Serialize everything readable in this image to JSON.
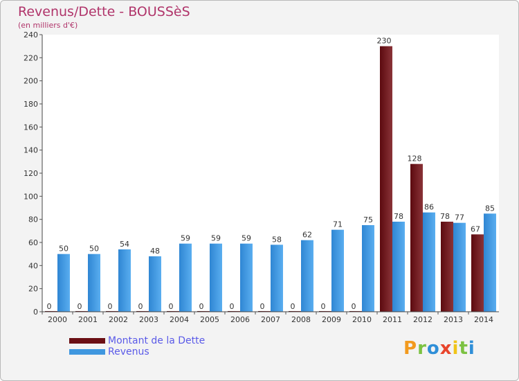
{
  "chart_data": {
    "type": "bar",
    "title": "Revenus/Dette - BOUSSèS",
    "subtitle": "(en milliers d'€)",
    "categories": [
      "2000",
      "2001",
      "2002",
      "2003",
      "2004",
      "2005",
      "2006",
      "2007",
      "2008",
      "2009",
      "2010",
      "2011",
      "2012",
      "2013",
      "2014"
    ],
    "series": [
      {
        "name": "Montant de la Dette",
        "color": "#6b0f14",
        "values": [
          0,
          0,
          0,
          0,
          0,
          0,
          0,
          0,
          0,
          0,
          0,
          230,
          128,
          78,
          67
        ]
      },
      {
        "name": "Revenus",
        "color": "#3f97df",
        "values": [
          50,
          50,
          54,
          48,
          59,
          59,
          59,
          58,
          62,
          71,
          75,
          78,
          86,
          77,
          85
        ]
      }
    ],
    "ylim": [
      0,
      240
    ],
    "yticks": [
      0,
      20,
      40,
      60,
      80,
      100,
      120,
      140,
      160,
      180,
      200,
      220,
      240
    ],
    "grid": false,
    "legend_position": "bottom-left"
  },
  "legend": [
    {
      "label": "Montant de la Dette",
      "color": "#6b0f14"
    },
    {
      "label": "Revenus",
      "color": "#3f97df"
    }
  ],
  "logo": {
    "letters": [
      "P",
      "r",
      "o",
      "x",
      "i",
      "t",
      "i"
    ],
    "colors": [
      "#f29a1e",
      "#7cc242",
      "#2f8fd8",
      "#e8452c",
      "#f0c419",
      "#7cc242",
      "#2f8fd8"
    ]
  }
}
